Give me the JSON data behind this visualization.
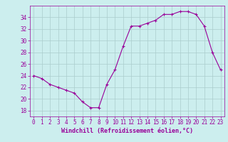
{
  "x": [
    0,
    1,
    2,
    3,
    4,
    5,
    6,
    7,
    8,
    9,
    10,
    11,
    12,
    13,
    14,
    15,
    16,
    17,
    18,
    19,
    20,
    21,
    22,
    23
  ],
  "y": [
    24,
    23.5,
    22.5,
    22,
    21.5,
    21,
    19.5,
    18.5,
    18.5,
    22.5,
    25,
    29,
    32.5,
    32.5,
    33,
    33.5,
    34.5,
    34.5,
    35,
    35,
    34.5,
    32.5,
    28,
    25
  ],
  "line_color": "#990099",
  "marker": "+",
  "bg_color": "#cceeee",
  "grid_color": "#aacccc",
  "xlabel": "Windchill (Refroidissement éolien,°C)",
  "xlabel_color": "#990099",
  "tick_color": "#990099",
  "ylim": [
    17,
    36
  ],
  "xlim": [
    -0.5,
    23.5
  ],
  "yticks": [
    18,
    20,
    22,
    24,
    26,
    28,
    30,
    32,
    34
  ],
  "xticks": [
    0,
    1,
    2,
    3,
    4,
    5,
    6,
    7,
    8,
    9,
    10,
    11,
    12,
    13,
    14,
    15,
    16,
    17,
    18,
    19,
    20,
    21,
    22,
    23
  ],
  "tick_fontsize": 5.5,
  "xlabel_fontsize": 6.0
}
